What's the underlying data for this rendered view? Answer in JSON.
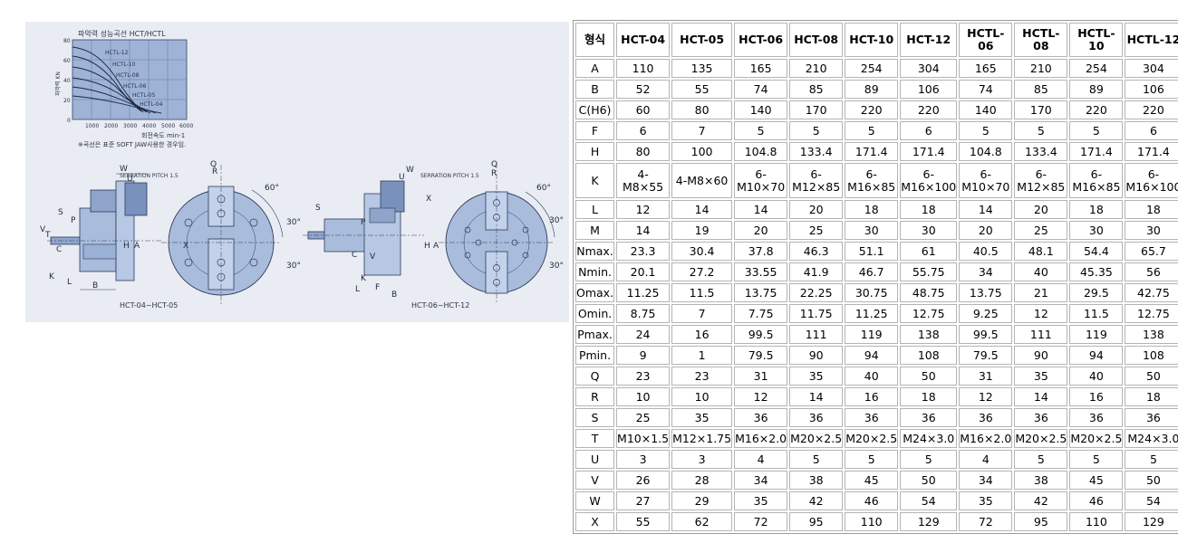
{
  "drawing": {
    "chart_title": "파악력 성능곡선 HCT/HCTL",
    "yaxis_label": "파악력 KN",
    "yaxis_ticks": [
      "80",
      "60",
      "40",
      "20",
      "0"
    ],
    "xaxis_ticks": [
      "1000",
      "2000",
      "3000",
      "4000",
      "5000",
      "6000"
    ],
    "xaxis_label": "회전속도 min-1",
    "curve_labels": [
      "HCTL-12",
      "HCTL-10",
      "HCTL-08",
      "HCTL-06",
      "HCTL-05",
      "HCTL-04"
    ],
    "note": "※곡선은 표준 SOFT JAW사용한 경우임.",
    "serration_label": "SERRATION PITCH 1.5",
    "caption_left": "HCT-04~HCT-05",
    "caption_right": "HCT-06~HCT-12",
    "dim_letters": {
      "w": "W",
      "u": "U",
      "s": "S",
      "p": "P",
      "t": "T",
      "v": "V",
      "c": "C",
      "k": "K",
      "l": "L",
      "b": "B",
      "h": "H",
      "a": "A",
      "q": "Q",
      "r": "R",
      "x": "X",
      "f": "F",
      "angle60": "60°",
      "angle30": "30°"
    }
  },
  "spec": {
    "corner": "형식",
    "columns": [
      "HCT-04",
      "HCT-05",
      "HCT-06",
      "HCT-08",
      "HCT-10",
      "HCT-12",
      "HCTL-06",
      "HCTL-08",
      "HCTL-10",
      "HCTL-12"
    ],
    "rows": [
      {
        "label": "A",
        "values": [
          "110",
          "135",
          "165",
          "210",
          "254",
          "304",
          "165",
          "210",
          "254",
          "304"
        ]
      },
      {
        "label": "B",
        "values": [
          "52",
          "55",
          "74",
          "85",
          "89",
          "106",
          "74",
          "85",
          "89",
          "106"
        ]
      },
      {
        "label": "C(H6)",
        "values": [
          "60",
          "80",
          "140",
          "170",
          "220",
          "220",
          "140",
          "170",
          "220",
          "220"
        ]
      },
      {
        "label": "F",
        "values": [
          "6",
          "7",
          "5",
          "5",
          "5",
          "6",
          "5",
          "5",
          "5",
          "6"
        ]
      },
      {
        "label": "H",
        "values": [
          "80",
          "100",
          "104.8",
          "133.4",
          "171.4",
          "171.4",
          "104.8",
          "133.4",
          "171.4",
          "171.4"
        ]
      },
      {
        "label": "K",
        "values": [
          "4-M8×55",
          "4-M8×60",
          "6-M10×70",
          "6-M12×85",
          "6-M16×85",
          "6-M16×100",
          "6-M10×70",
          "6-M12×85",
          "6-M16×85",
          "6-M16×100"
        ]
      },
      {
        "label": "L",
        "values": [
          "12",
          "14",
          "14",
          "20",
          "18",
          "18",
          "14",
          "20",
          "18",
          "18"
        ]
      },
      {
        "label": "M",
        "values": [
          "14",
          "19",
          "20",
          "25",
          "30",
          "30",
          "20",
          "25",
          "30",
          "30"
        ]
      },
      {
        "label": "Nmax.",
        "values": [
          "23.3",
          "30.4",
          "37.8",
          "46.3",
          "51.1",
          "61",
          "40.5",
          "48.1",
          "54.4",
          "65.7"
        ]
      },
      {
        "label": "Nmin.",
        "values": [
          "20.1",
          "27.2",
          "33.55",
          "41.9",
          "46.7",
          "55.75",
          "34",
          "40",
          "45.35",
          "56"
        ]
      },
      {
        "label": "Omax.",
        "values": [
          "11.25",
          "11.5",
          "13.75",
          "22.25",
          "30.75",
          "48.75",
          "13.75",
          "21",
          "29.5",
          "42.75"
        ]
      },
      {
        "label": "Omin.",
        "values": [
          "8.75",
          "7",
          "7.75",
          "11.75",
          "11.25",
          "12.75",
          "9.25",
          "12",
          "11.5",
          "12.75"
        ]
      },
      {
        "label": "Pmax.",
        "values": [
          "24",
          "16",
          "99.5",
          "111",
          "119",
          "138",
          "99.5",
          "111",
          "119",
          "138"
        ]
      },
      {
        "label": "Pmin.",
        "values": [
          "9",
          "1",
          "79.5",
          "90",
          "94",
          "108",
          "79.5",
          "90",
          "94",
          "108"
        ]
      },
      {
        "label": "Q",
        "values": [
          "23",
          "23",
          "31",
          "35",
          "40",
          "50",
          "31",
          "35",
          "40",
          "50"
        ]
      },
      {
        "label": "R",
        "values": [
          "10",
          "10",
          "12",
          "14",
          "16",
          "18",
          "12",
          "14",
          "16",
          "18"
        ]
      },
      {
        "label": "S",
        "values": [
          "25",
          "35",
          "36",
          "36",
          "36",
          "36",
          "36",
          "36",
          "36",
          "36"
        ]
      },
      {
        "label": "T",
        "values": [
          "M10×1.5",
          "M12×1.75",
          "M16×2.0",
          "M20×2.5",
          "M20×2.5",
          "M24×3.0",
          "M16×2.0",
          "M20×2.5",
          "M20×2.5",
          "M24×3.0"
        ]
      },
      {
        "label": "U",
        "values": [
          "3",
          "3",
          "4",
          "5",
          "5",
          "5",
          "4",
          "5",
          "5",
          "5"
        ]
      },
      {
        "label": "V",
        "values": [
          "26",
          "28",
          "34",
          "38",
          "45",
          "50",
          "34",
          "38",
          "45",
          "50"
        ]
      },
      {
        "label": "W",
        "values": [
          "27",
          "29",
          "35",
          "42",
          "46",
          "54",
          "35",
          "42",
          "46",
          "54"
        ]
      },
      {
        "label": "X",
        "values": [
          "55",
          "62",
          "72",
          "95",
          "110",
          "129",
          "72",
          "95",
          "110",
          "129"
        ]
      }
    ]
  }
}
